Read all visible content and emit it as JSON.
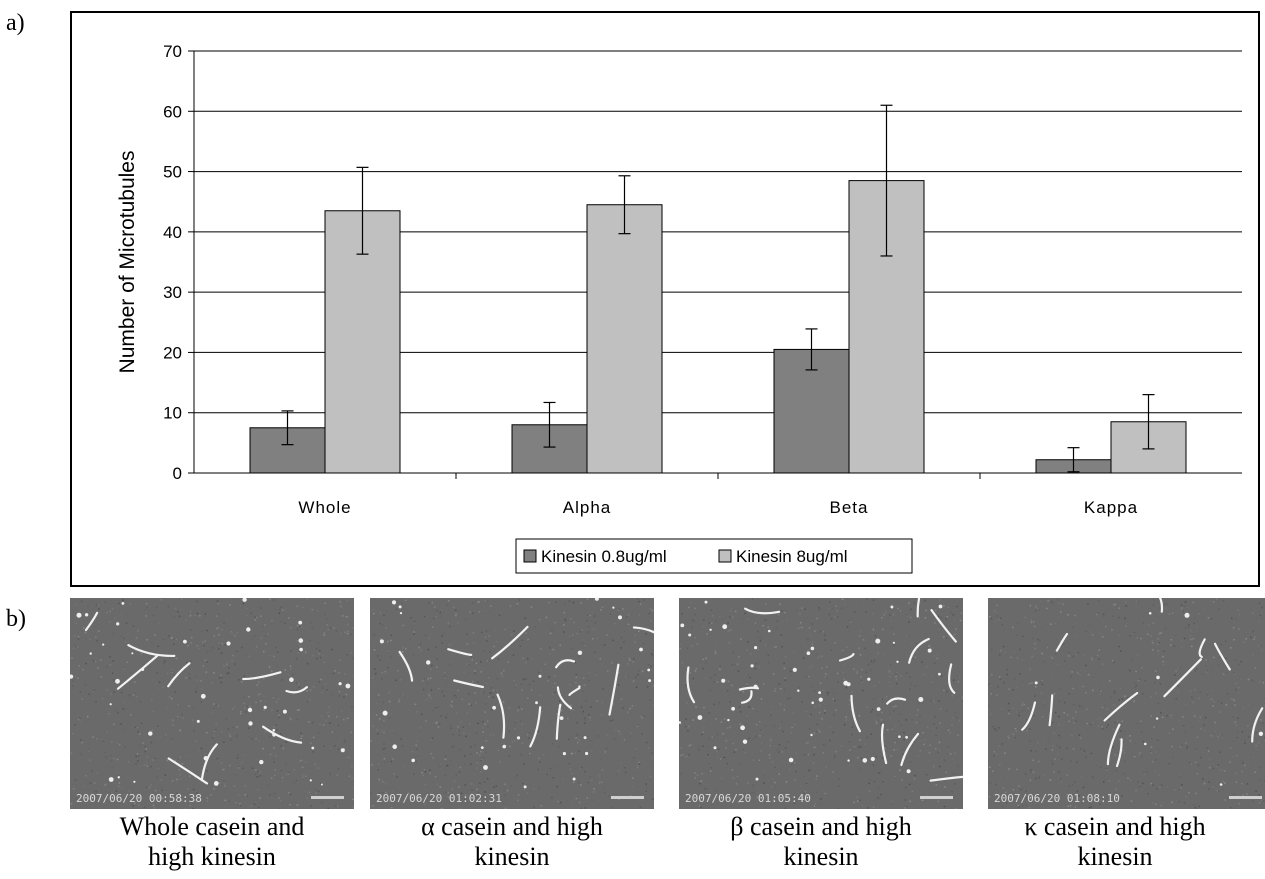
{
  "panel_labels": {
    "a": "a)",
    "b": "b)"
  },
  "chart_data": {
    "type": "bar",
    "categories": [
      "Whole",
      "Alpha",
      "Beta",
      "Kappa"
    ],
    "series": [
      {
        "name": "Kinesin 0.8ug/ml",
        "values": [
          7.5,
          8.0,
          20.5,
          2.2
        ],
        "errors": [
          2.8,
          3.7,
          3.4,
          2.0
        ],
        "color": "#808080"
      },
      {
        "name": "Kinesin 8ug/ml",
        "values": [
          43.5,
          44.5,
          48.5,
          8.5
        ],
        "errors": [
          7.2,
          4.8,
          12.5,
          4.5
        ],
        "color": "#c0c0c0"
      }
    ],
    "title": "",
    "xlabel": "",
    "ylabel": "Number of Microtubules",
    "ylim": [
      0,
      70
    ],
    "yticks": [
      "0",
      "10",
      "20",
      "30",
      "40",
      "50",
      "60",
      "70"
    ],
    "grid": true,
    "legend_position": "bottom"
  },
  "micrographs": [
    {
      "timestamp": "2007/06/20 00:58:38",
      "caption_line1": "Whole casein and",
      "caption_line2": "high kinesin"
    },
    {
      "timestamp": "2007/06/20 01:02:31",
      "caption_line1": "α casein and high",
      "caption_line2": "kinesin"
    },
    {
      "timestamp": "2007/06/20 01:05:40",
      "caption_line1": "β casein and high",
      "caption_line2": "kinesin"
    },
    {
      "timestamp": "2007/06/20 01:08:10",
      "caption_line1": "κ  casein and high",
      "caption_line2": "kinesin"
    }
  ]
}
